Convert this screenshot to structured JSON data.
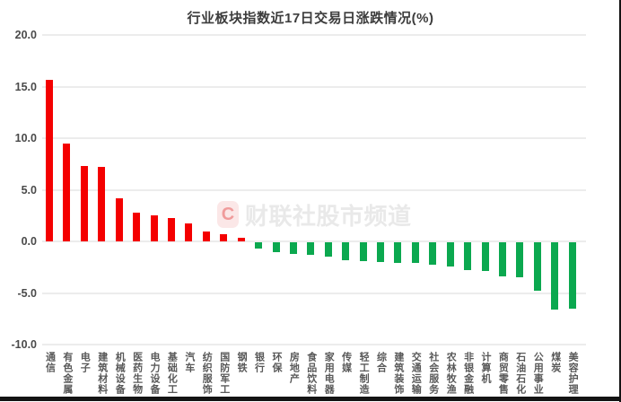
{
  "colors": {
    "up_red": "#f40000",
    "down_green": "#0ba84f",
    "gridline": "#ececec",
    "title_text": "#3c3c3c",
    "axis_tick_text": "#4a4a4a",
    "category_text": "#595959",
    "watermark_text": "#e9e9e9",
    "watermark_logo_bg": "#fbe7e7",
    "watermark_logo_letter": "#f09b9b",
    "edge_border": "#141414"
  },
  "watermark": {
    "logo_letter": "C",
    "text": "财联社股市频道"
  },
  "chart_data": {
    "type": "bar",
    "title": "行业板块指数近17日交易日涨跌情况(%)",
    "xlabel": "",
    "ylabel": "",
    "ylim": [
      -10,
      20
    ],
    "grid": true,
    "legend": "none",
    "bar_color_rule": "value >= 0 red (up), value < 0 green (down)",
    "yticks": [
      {
        "value": 20,
        "label": "20.0"
      },
      {
        "value": 15,
        "label": "15.0"
      },
      {
        "value": 10,
        "label": "10.0"
      },
      {
        "value": 5,
        "label": "5.0"
      },
      {
        "value": 0,
        "label": "0.0"
      },
      {
        "value": -5,
        "label": "-5.0"
      },
      {
        "value": -10,
        "label": "-10.0"
      }
    ],
    "categories": [
      "通信",
      "有色金属",
      "电子",
      "建筑材料",
      "机械设备",
      "医药生物",
      "电力设备",
      "基础化工",
      "汽车",
      "纺织服饰",
      "国防军工",
      "钢铁",
      "银行",
      "环保",
      "房地产",
      "食品饮料",
      "家用电器",
      "传媒",
      "轻工制造",
      "综合",
      "建筑装饰",
      "交通运输",
      "社会服务",
      "农林牧渔",
      "非银金融",
      "计算机",
      "商贸零售",
      "石油石化",
      "公用事业",
      "煤炭",
      "美容护理"
    ],
    "values": [
      15.7,
      9.5,
      7.3,
      7.2,
      4.2,
      2.8,
      2.5,
      2.3,
      1.8,
      1.0,
      0.7,
      0.4,
      -0.6,
      -0.9,
      -1.1,
      -1.2,
      -1.4,
      -1.7,
      -1.8,
      -1.9,
      -2.0,
      -2.0,
      -2.2,
      -2.3,
      -2.7,
      -2.8,
      -3.3,
      -3.4,
      -4.7,
      -6.5,
      -6.4
    ]
  }
}
